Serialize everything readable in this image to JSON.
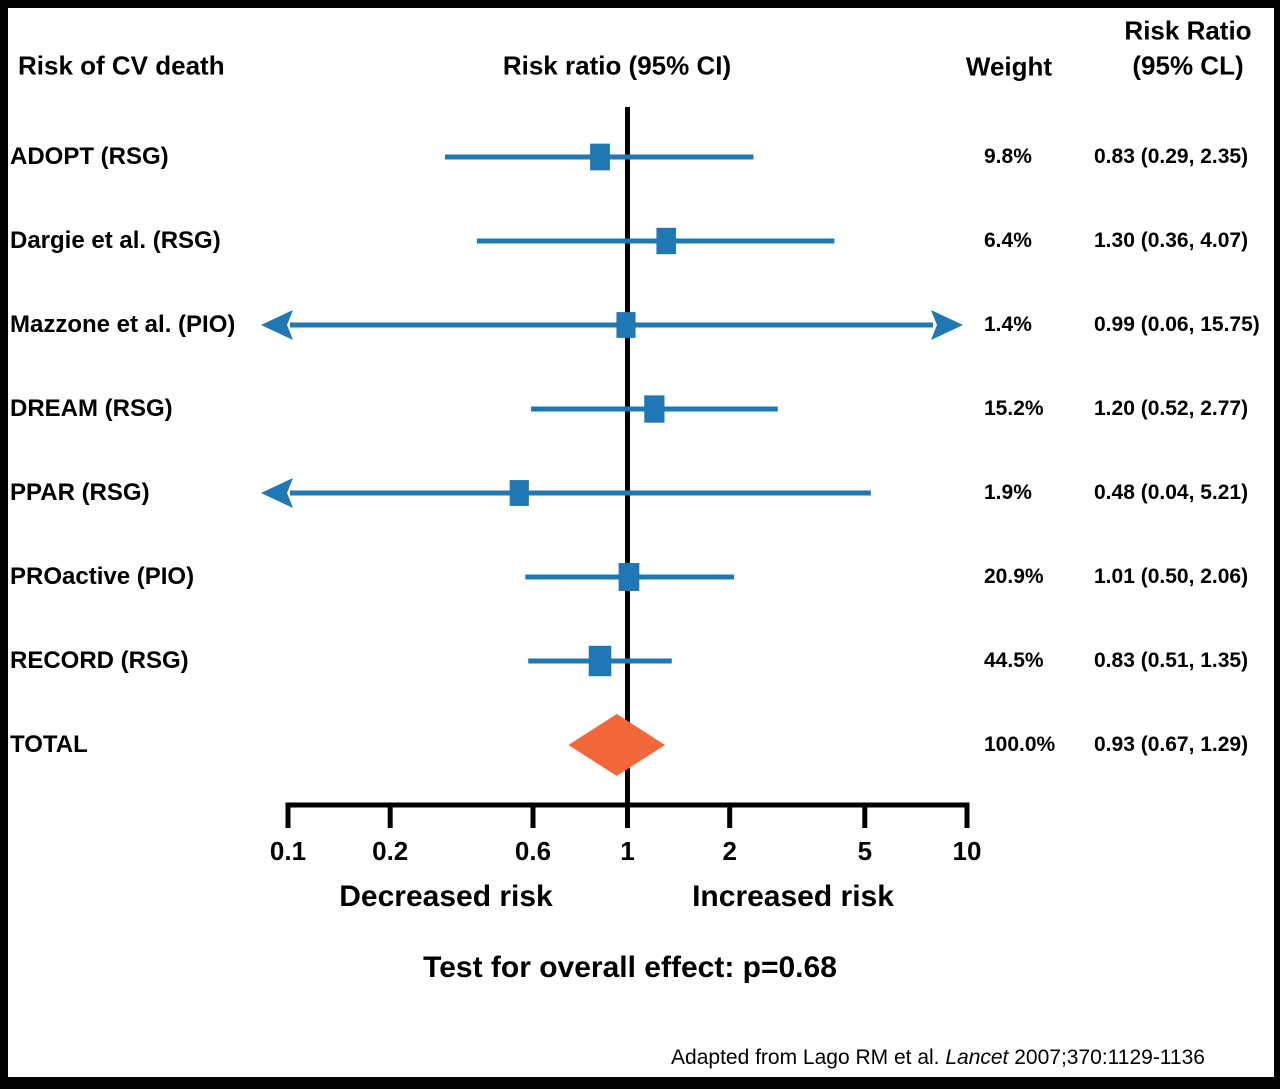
{
  "header": {
    "study_col": "Risk of CV death",
    "ratio_col": "Risk ratio (95% CI)",
    "weight_col": "Weight",
    "rr_col_line1": "Risk Ratio",
    "rr_col_line2": "(95% CL)"
  },
  "chart_data": {
    "type": "forest",
    "title": "Risk of CV death",
    "x_axis": {
      "scale": "log",
      "min": 0.1,
      "max": 10,
      "ticks": [
        0.1,
        0.2,
        0.6,
        1,
        2,
        5,
        10
      ],
      "tick_labels": [
        "0.1",
        "0.2",
        "0.6",
        "1",
        "2",
        "5",
        "10"
      ],
      "no_effect_line_x": 1
    },
    "studies": [
      {
        "label": "ADOPT (RSG)",
        "weight_text": "9.8%",
        "weight_value": 9.8,
        "rr": 0.83,
        "ci_low": 0.29,
        "ci_high": 2.35,
        "rr_text": "0.83 (0.29, 2.35)"
      },
      {
        "label": "Dargie et al. (RSG)",
        "weight_text": "6.4%",
        "weight_value": 6.4,
        "rr": 1.3,
        "ci_low": 0.36,
        "ci_high": 4.07,
        "rr_text": "1.30 (0.36, 4.07)"
      },
      {
        "label": "Mazzone et al. (PIO)",
        "weight_text": "1.4%",
        "weight_value": 1.4,
        "rr": 0.99,
        "ci_low": 0.06,
        "ci_high": 15.75,
        "rr_text": "0.99 (0.06, 15.75)"
      },
      {
        "label": "DREAM (RSG)",
        "weight_text": "15.2%",
        "weight_value": 15.2,
        "rr": 1.2,
        "ci_low": 0.52,
        "ci_high": 2.77,
        "rr_text": "1.20 (0.52, 2.77)"
      },
      {
        "label": "PPAR (RSG)",
        "weight_text": "1.9%",
        "weight_value": 1.9,
        "rr": 0.48,
        "ci_low": 0.04,
        "ci_high": 5.21,
        "rr_text": "0.48 (0.04, 5.21)"
      },
      {
        "label": "PROactive (PIO)",
        "weight_text": "20.9%",
        "weight_value": 20.9,
        "rr": 1.01,
        "ci_low": 0.5,
        "ci_high": 2.06,
        "rr_text": "1.01 (0.50, 2.06)"
      },
      {
        "label": "RECORD (RSG)",
        "weight_text": "44.5%",
        "weight_value": 44.5,
        "rr": 0.83,
        "ci_low": 0.51,
        "ci_high": 1.35,
        "rr_text": "0.83 (0.51, 1.35)"
      }
    ],
    "total": {
      "label": "TOTAL",
      "weight_text": "100.0%",
      "rr": 0.93,
      "ci_low": 0.67,
      "ci_high": 1.29,
      "rr_text": "0.93 (0.67, 1.29)"
    },
    "axis_caption_left": "Decreased risk",
    "axis_caption_right": "Increased risk",
    "overall_effect_note": "Test for overall effect: p=0.68",
    "colors": {
      "study_marker": "#1F77B4",
      "total_marker": "#F2683B",
      "axis": "#000000"
    }
  },
  "footer": {
    "prefix": "Adapted from Lago RM et al. ",
    "journal_italic": "Lancet",
    "suffix": " 2007;370:1129-1136"
  }
}
